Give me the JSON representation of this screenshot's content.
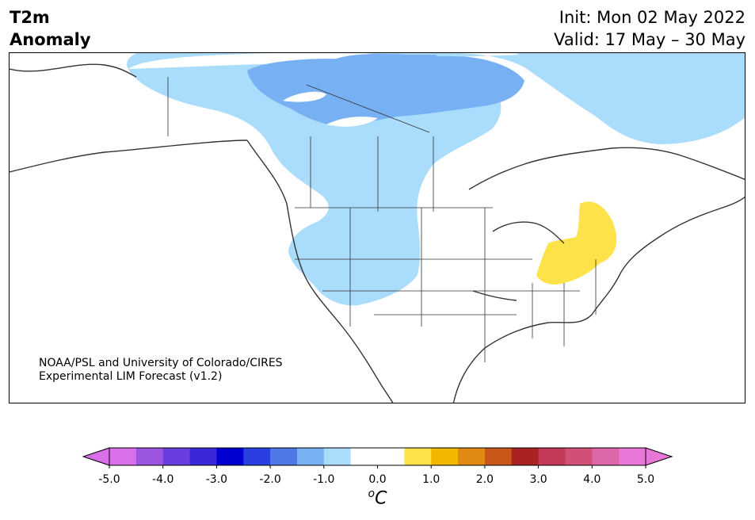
{
  "header": {
    "variable": "T2m",
    "variable_sub": "Anomaly",
    "init": "Init: Mon 02 May 2022",
    "valid": "Valid: 17 May – 30 May"
  },
  "credit": {
    "line1": "NOAA/PSL and University of Colorado/CIRES",
    "line2": "Experimental LIM Forecast (v1.2)"
  },
  "colorbar": {
    "unit_sup": "o",
    "unit": "C",
    "ticks": [
      "-5.0",
      "-4.0",
      "-3.0",
      "-2.0",
      "-1.0",
      "0.0",
      "1.0",
      "2.0",
      "3.0",
      "4.0",
      "5.0"
    ],
    "colors": [
      "#d870e8",
      "#9b55e0",
      "#6a3de0",
      "#3a28d8",
      "#0000d0",
      "#2a3fe0",
      "#4f78e6",
      "#78b0f4",
      "#aadcfc",
      "#ffffff",
      "#ffffff",
      "#fde24a",
      "#f2b800",
      "#e08a12",
      "#c8571a",
      "#aa2222",
      "#c23a55",
      "#d05078",
      "#dc66a8",
      "#e878d8"
    ],
    "extend_min_color": "#d870e8",
    "extend_max_color": "#e878d8"
  },
  "map": {
    "region": "North America",
    "anomaly_features": [
      {
        "name": "northern Canada cold anomaly",
        "level": "-1.0 to -1.5",
        "color": "#78b0f4"
      },
      {
        "name": "western Canada / US Rockies cold anomaly",
        "level": "-0.5 to -1.0",
        "color": "#aadcfc"
      },
      {
        "name": "Ohio Valley / Great Lakes warm anomaly",
        "level": "0.5 to 1.0",
        "color": "#fde24a"
      }
    ],
    "land_color": "#ffffff",
    "ocean_color": "#ffffff",
    "border_color": "#333333"
  }
}
